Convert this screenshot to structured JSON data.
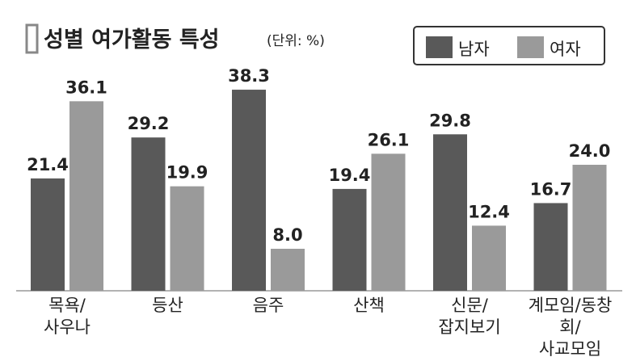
{
  "chart_data": {
    "type": "bar",
    "title": "성별 여가활동 특성",
    "subtitle": "(단위: %)",
    "categories": [
      "목욕/\n사우나",
      "등산",
      "음주",
      "산책",
      "신문/\n잡지보기",
      "계모임/동창회/\n사교모임"
    ],
    "series": [
      {
        "name": "남자",
        "color": "#595959",
        "values": [
          21.4,
          29.2,
          38.3,
          19.4,
          29.8,
          16.7
        ],
        "value_labels": [
          "21.4",
          "29.2",
          "38.3",
          "19.4",
          "29.8",
          "16.7"
        ]
      },
      {
        "name": "여자",
        "color": "#9a9a9a",
        "values": [
          36.1,
          19.9,
          8.0,
          26.1,
          12.4,
          24.0
        ],
        "value_labels": [
          "36.1",
          "19.9",
          "8.0",
          "26.1",
          "12.4",
          "24.0"
        ]
      }
    ]
  }
}
